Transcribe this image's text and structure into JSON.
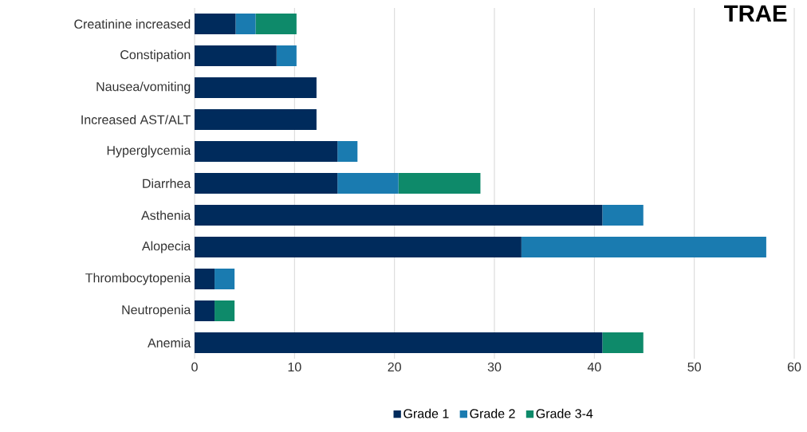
{
  "chart_data": {
    "type": "bar",
    "title": "TRAE",
    "orientation": "horizontal",
    "stacked": true,
    "categories": [
      "Creatinine increased",
      "Constipation",
      "Nausea/vomiting",
      "Increased AST/ALT",
      "Hyperglycemia",
      "Diarrhea",
      "Asthenia",
      "Alopecia",
      "Thrombocytopenia",
      "Neutropenia",
      "Anemia"
    ],
    "series": [
      {
        "name": "Grade 1",
        "color": "#002b5c",
        "values": [
          4.1,
          8.2,
          12.2,
          12.2,
          14.3,
          14.3,
          40.8,
          32.7,
          2.0,
          2.0,
          40.8
        ]
      },
      {
        "name": "Grade 2",
        "color": "#1a7bb0",
        "values": [
          2.0,
          2.0,
          null,
          null,
          2.0,
          6.1,
          4.1,
          24.5,
          2.0,
          null,
          null
        ]
      },
      {
        "name": "Grade 3-4",
        "color": "#0e8a6a",
        "values": [
          4.1,
          null,
          null,
          null,
          null,
          8.2,
          null,
          null,
          null,
          2.0,
          4.1
        ]
      }
    ],
    "xlim": [
      0,
      60
    ],
    "xticks": [
      0,
      10,
      20,
      30,
      40,
      50,
      60
    ],
    "grid": "x",
    "legend": "bottom"
  }
}
